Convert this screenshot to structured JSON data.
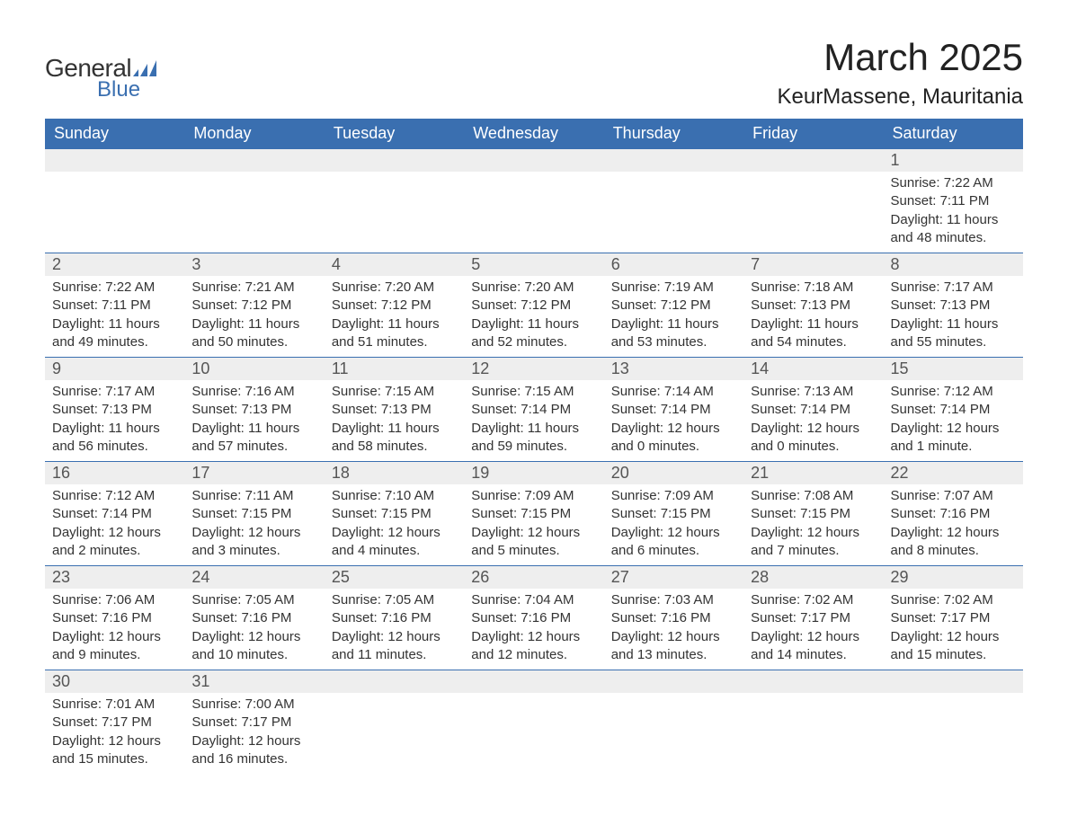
{
  "logo": {
    "text1": "General",
    "text2": "Blue"
  },
  "title": "March 2025",
  "location": "KeurMassene, Mauritania",
  "colors": {
    "header_bg": "#3a6fb0",
    "header_text": "#ffffff",
    "daynum_bg": "#eeeeee",
    "daynum_text": "#555555",
    "body_text": "#333333",
    "logo_blue": "#3a6fb0",
    "page_bg": "#ffffff"
  },
  "typography": {
    "title_fontsize": 42,
    "location_fontsize": 24,
    "header_fontsize": 18,
    "daynum_fontsize": 18,
    "data_fontsize": 15
  },
  "layout": {
    "columns": 7,
    "rows": 6,
    "cell_width_pct": 14.28
  },
  "weekdays": [
    "Sunday",
    "Monday",
    "Tuesday",
    "Wednesday",
    "Thursday",
    "Friday",
    "Saturday"
  ],
  "weeks": [
    [
      null,
      null,
      null,
      null,
      null,
      null,
      {
        "n": "1",
        "sunrise": "Sunrise: 7:22 AM",
        "sunset": "Sunset: 7:11 PM",
        "daylight": "Daylight: 11 hours and 48 minutes."
      }
    ],
    [
      {
        "n": "2",
        "sunrise": "Sunrise: 7:22 AM",
        "sunset": "Sunset: 7:11 PM",
        "daylight": "Daylight: 11 hours and 49 minutes."
      },
      {
        "n": "3",
        "sunrise": "Sunrise: 7:21 AM",
        "sunset": "Sunset: 7:12 PM",
        "daylight": "Daylight: 11 hours and 50 minutes."
      },
      {
        "n": "4",
        "sunrise": "Sunrise: 7:20 AM",
        "sunset": "Sunset: 7:12 PM",
        "daylight": "Daylight: 11 hours and 51 minutes."
      },
      {
        "n": "5",
        "sunrise": "Sunrise: 7:20 AM",
        "sunset": "Sunset: 7:12 PM",
        "daylight": "Daylight: 11 hours and 52 minutes."
      },
      {
        "n": "6",
        "sunrise": "Sunrise: 7:19 AM",
        "sunset": "Sunset: 7:12 PM",
        "daylight": "Daylight: 11 hours and 53 minutes."
      },
      {
        "n": "7",
        "sunrise": "Sunrise: 7:18 AM",
        "sunset": "Sunset: 7:13 PM",
        "daylight": "Daylight: 11 hours and 54 minutes."
      },
      {
        "n": "8",
        "sunrise": "Sunrise: 7:17 AM",
        "sunset": "Sunset: 7:13 PM",
        "daylight": "Daylight: 11 hours and 55 minutes."
      }
    ],
    [
      {
        "n": "9",
        "sunrise": "Sunrise: 7:17 AM",
        "sunset": "Sunset: 7:13 PM",
        "daylight": "Daylight: 11 hours and 56 minutes."
      },
      {
        "n": "10",
        "sunrise": "Sunrise: 7:16 AM",
        "sunset": "Sunset: 7:13 PM",
        "daylight": "Daylight: 11 hours and 57 minutes."
      },
      {
        "n": "11",
        "sunrise": "Sunrise: 7:15 AM",
        "sunset": "Sunset: 7:13 PM",
        "daylight": "Daylight: 11 hours and 58 minutes."
      },
      {
        "n": "12",
        "sunrise": "Sunrise: 7:15 AM",
        "sunset": "Sunset: 7:14 PM",
        "daylight": "Daylight: 11 hours and 59 minutes."
      },
      {
        "n": "13",
        "sunrise": "Sunrise: 7:14 AM",
        "sunset": "Sunset: 7:14 PM",
        "daylight": "Daylight: 12 hours and 0 minutes."
      },
      {
        "n": "14",
        "sunrise": "Sunrise: 7:13 AM",
        "sunset": "Sunset: 7:14 PM",
        "daylight": "Daylight: 12 hours and 0 minutes."
      },
      {
        "n": "15",
        "sunrise": "Sunrise: 7:12 AM",
        "sunset": "Sunset: 7:14 PM",
        "daylight": "Daylight: 12 hours and 1 minute."
      }
    ],
    [
      {
        "n": "16",
        "sunrise": "Sunrise: 7:12 AM",
        "sunset": "Sunset: 7:14 PM",
        "daylight": "Daylight: 12 hours and 2 minutes."
      },
      {
        "n": "17",
        "sunrise": "Sunrise: 7:11 AM",
        "sunset": "Sunset: 7:15 PM",
        "daylight": "Daylight: 12 hours and 3 minutes."
      },
      {
        "n": "18",
        "sunrise": "Sunrise: 7:10 AM",
        "sunset": "Sunset: 7:15 PM",
        "daylight": "Daylight: 12 hours and 4 minutes."
      },
      {
        "n": "19",
        "sunrise": "Sunrise: 7:09 AM",
        "sunset": "Sunset: 7:15 PM",
        "daylight": "Daylight: 12 hours and 5 minutes."
      },
      {
        "n": "20",
        "sunrise": "Sunrise: 7:09 AM",
        "sunset": "Sunset: 7:15 PM",
        "daylight": "Daylight: 12 hours and 6 minutes."
      },
      {
        "n": "21",
        "sunrise": "Sunrise: 7:08 AM",
        "sunset": "Sunset: 7:15 PM",
        "daylight": "Daylight: 12 hours and 7 minutes."
      },
      {
        "n": "22",
        "sunrise": "Sunrise: 7:07 AM",
        "sunset": "Sunset: 7:16 PM",
        "daylight": "Daylight: 12 hours and 8 minutes."
      }
    ],
    [
      {
        "n": "23",
        "sunrise": "Sunrise: 7:06 AM",
        "sunset": "Sunset: 7:16 PM",
        "daylight": "Daylight: 12 hours and 9 minutes."
      },
      {
        "n": "24",
        "sunrise": "Sunrise: 7:05 AM",
        "sunset": "Sunset: 7:16 PM",
        "daylight": "Daylight: 12 hours and 10 minutes."
      },
      {
        "n": "25",
        "sunrise": "Sunrise: 7:05 AM",
        "sunset": "Sunset: 7:16 PM",
        "daylight": "Daylight: 12 hours and 11 minutes."
      },
      {
        "n": "26",
        "sunrise": "Sunrise: 7:04 AM",
        "sunset": "Sunset: 7:16 PM",
        "daylight": "Daylight: 12 hours and 12 minutes."
      },
      {
        "n": "27",
        "sunrise": "Sunrise: 7:03 AM",
        "sunset": "Sunset: 7:16 PM",
        "daylight": "Daylight: 12 hours and 13 minutes."
      },
      {
        "n": "28",
        "sunrise": "Sunrise: 7:02 AM",
        "sunset": "Sunset: 7:17 PM",
        "daylight": "Daylight: 12 hours and 14 minutes."
      },
      {
        "n": "29",
        "sunrise": "Sunrise: 7:02 AM",
        "sunset": "Sunset: 7:17 PM",
        "daylight": "Daylight: 12 hours and 15 minutes."
      }
    ],
    [
      {
        "n": "30",
        "sunrise": "Sunrise: 7:01 AM",
        "sunset": "Sunset: 7:17 PM",
        "daylight": "Daylight: 12 hours and 15 minutes."
      },
      {
        "n": "31",
        "sunrise": "Sunrise: 7:00 AM",
        "sunset": "Sunset: 7:17 PM",
        "daylight": "Daylight: 12 hours and 16 minutes."
      },
      null,
      null,
      null,
      null,
      null
    ]
  ]
}
